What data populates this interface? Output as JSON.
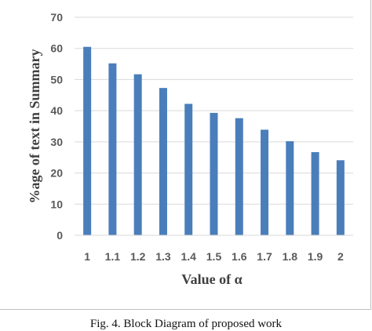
{
  "chart_data": {
    "type": "bar",
    "categories": [
      "1",
      "1.1",
      "1.2",
      "1.3",
      "1.4",
      "1.5",
      "1.6",
      "1.7",
      "1.8",
      "1.9",
      "2"
    ],
    "values": [
      60.5,
      55.2,
      51.7,
      47.3,
      42.2,
      39.3,
      37.6,
      33.9,
      30.2,
      26.7,
      24.1
    ],
    "title": "",
    "xlabel": "Value of α",
    "ylabel": "%age of text in Summary",
    "ylim": [
      0,
      70
    ],
    "yticks": [
      0,
      10,
      20,
      30,
      40,
      50,
      60,
      70
    ],
    "grid": true,
    "bar_color": "#4a7ebb",
    "grid_color": "#d9d9d9"
  },
  "caption": "Fig. 4.    Block Diagram of proposed work"
}
